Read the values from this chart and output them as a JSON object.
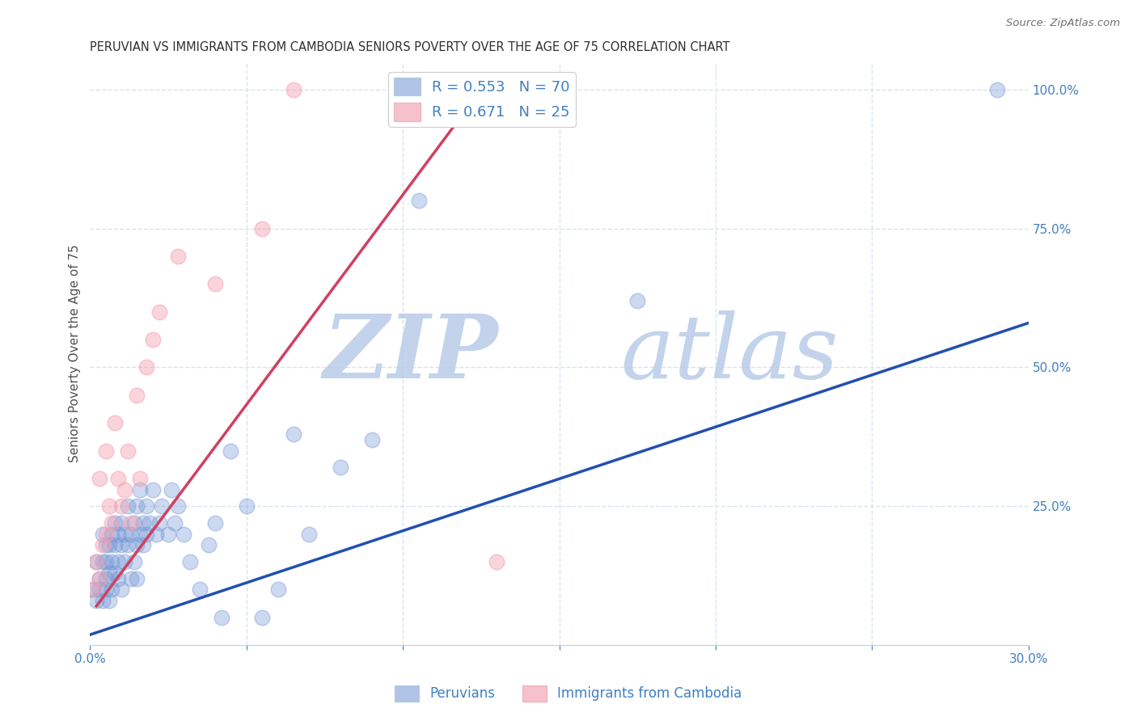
{
  "title": "PERUVIAN VS IMMIGRANTS FROM CAMBODIA SENIORS POVERTY OVER THE AGE OF 75 CORRELATION CHART",
  "source_text": "Source: ZipAtlas.com",
  "ylabel": "Seniors Poverty Over the Age of 75",
  "xlim": [
    0.0,
    0.3
  ],
  "ylim": [
    0.0,
    1.05
  ],
  "xticks": [
    0.0,
    0.05,
    0.1,
    0.15,
    0.2,
    0.25,
    0.3
  ],
  "xticklabels": [
    "0.0%",
    "",
    "",
    "",
    "",
    "",
    "30.0%"
  ],
  "yticks_right": [
    0.0,
    0.25,
    0.5,
    0.75,
    1.0
  ],
  "yticklabels_right": [
    "",
    "25.0%",
    "50.0%",
    "75.0%",
    "100.0%"
  ],
  "blue_color": "#7094d4",
  "pink_color": "#f4a0b0",
  "blue_line_color": "#2050b0",
  "pink_line_color": "#d04060",
  "legend_R_blue": "0.553",
  "legend_N_blue": "70",
  "legend_R_pink": "0.671",
  "legend_N_pink": "25",
  "watermark_zip": "ZIP",
  "watermark_atlas": "atlas",
  "watermark_color_zip": "#b8cce8",
  "watermark_color_atlas": "#b8cce8",
  "blue_scatter_x": [
    0.001,
    0.002,
    0.002,
    0.003,
    0.003,
    0.004,
    0.004,
    0.004,
    0.005,
    0.005,
    0.005,
    0.005,
    0.006,
    0.006,
    0.006,
    0.007,
    0.007,
    0.007,
    0.008,
    0.008,
    0.008,
    0.009,
    0.009,
    0.009,
    0.01,
    0.01,
    0.01,
    0.011,
    0.011,
    0.012,
    0.012,
    0.013,
    0.013,
    0.014,
    0.014,
    0.015,
    0.015,
    0.015,
    0.016,
    0.016,
    0.017,
    0.017,
    0.018,
    0.018,
    0.019,
    0.02,
    0.021,
    0.022,
    0.023,
    0.025,
    0.026,
    0.027,
    0.028,
    0.03,
    0.032,
    0.035,
    0.038,
    0.04,
    0.042,
    0.045,
    0.05,
    0.055,
    0.06,
    0.065,
    0.07,
    0.08,
    0.09,
    0.105,
    0.175,
    0.29
  ],
  "blue_scatter_y": [
    0.1,
    0.08,
    0.15,
    0.12,
    0.1,
    0.15,
    0.08,
    0.2,
    0.12,
    0.18,
    0.1,
    0.15,
    0.13,
    0.18,
    0.08,
    0.15,
    0.1,
    0.2,
    0.13,
    0.18,
    0.22,
    0.15,
    0.12,
    0.2,
    0.18,
    0.1,
    0.22,
    0.15,
    0.2,
    0.18,
    0.25,
    0.12,
    0.2,
    0.15,
    0.22,
    0.18,
    0.12,
    0.25,
    0.2,
    0.28,
    0.22,
    0.18,
    0.2,
    0.25,
    0.22,
    0.28,
    0.2,
    0.22,
    0.25,
    0.2,
    0.28,
    0.22,
    0.25,
    0.2,
    0.15,
    0.1,
    0.18,
    0.22,
    0.05,
    0.35,
    0.25,
    0.05,
    0.1,
    0.38,
    0.2,
    0.32,
    0.37,
    0.8,
    0.62,
    1.0
  ],
  "pink_scatter_x": [
    0.001,
    0.002,
    0.003,
    0.003,
    0.004,
    0.005,
    0.005,
    0.006,
    0.007,
    0.008,
    0.009,
    0.01,
    0.011,
    0.012,
    0.013,
    0.015,
    0.016,
    0.018,
    0.02,
    0.022,
    0.028,
    0.04,
    0.055,
    0.065,
    0.13
  ],
  "pink_scatter_y": [
    0.1,
    0.15,
    0.12,
    0.3,
    0.18,
    0.2,
    0.35,
    0.25,
    0.22,
    0.4,
    0.3,
    0.25,
    0.28,
    0.35,
    0.22,
    0.45,
    0.3,
    0.5,
    0.55,
    0.6,
    0.7,
    0.65,
    0.75,
    1.0,
    0.15
  ],
  "blue_line_x": [
    -0.01,
    0.3
  ],
  "blue_line_y": [
    0.0,
    0.58
  ],
  "pink_line_x": [
    0.002,
    0.125
  ],
  "pink_line_y": [
    0.07,
    1.0
  ],
  "grid_color": "#d8e4f0",
  "bg_color": "#ffffff",
  "title_color": "#303030",
  "axis_color": "#4080c0",
  "ylabel_color": "#505050"
}
